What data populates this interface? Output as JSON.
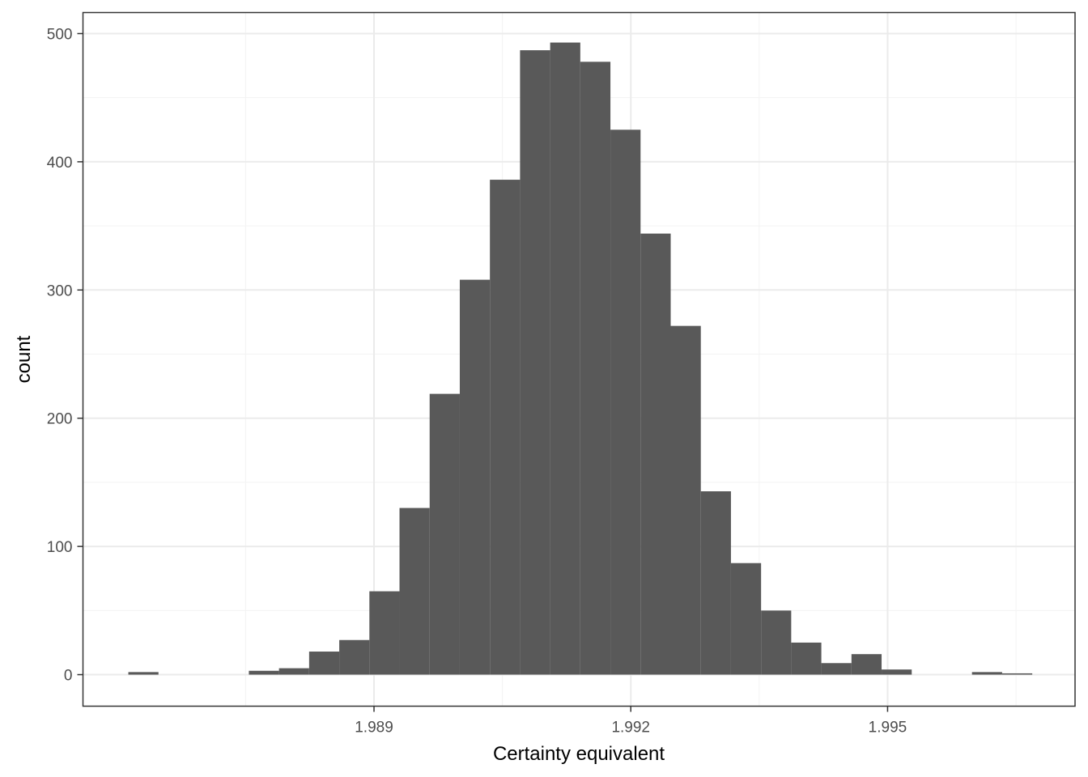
{
  "chart_data": {
    "type": "bar",
    "subtype": "histogram",
    "title": "",
    "xlabel": "Certainty equivalent",
    "ylabel": "count",
    "bins": 30,
    "bin_width": 0.000352,
    "bin_start": 1.98613,
    "x_ticks": [
      1.989,
      1.992,
      1.995
    ],
    "x_tick_labels": [
      "1.989",
      "1.992",
      "1.995"
    ],
    "x_minor_gridlines": [
      1.9875,
      1.9905,
      1.9935,
      1.9965
    ],
    "y_ticks": [
      0,
      100,
      200,
      300,
      400,
      500
    ],
    "y_tick_labels": [
      "0",
      "100",
      "200",
      "300",
      "400",
      "500"
    ],
    "xlim": [
      1.9856,
      1.99719
    ],
    "ylim": [
      -24.6,
      516.4
    ],
    "grid": true,
    "legend": null,
    "values": [
      2,
      0,
      0,
      0,
      3,
      5,
      18,
      27,
      65,
      130,
      219,
      308,
      386,
      487,
      493,
      478,
      425,
      344,
      272,
      143,
      87,
      50,
      25,
      9,
      16,
      4,
      0,
      0,
      2,
      1
    ],
    "colors": {
      "bar_fill": "#595959",
      "panel_border": "#333333",
      "grid_major": "#ebebeb",
      "grid_minor": "#f3f3f3",
      "tick_label": "#4d4d4d",
      "axis_title": "#000000",
      "background": "#ffffff"
    }
  }
}
